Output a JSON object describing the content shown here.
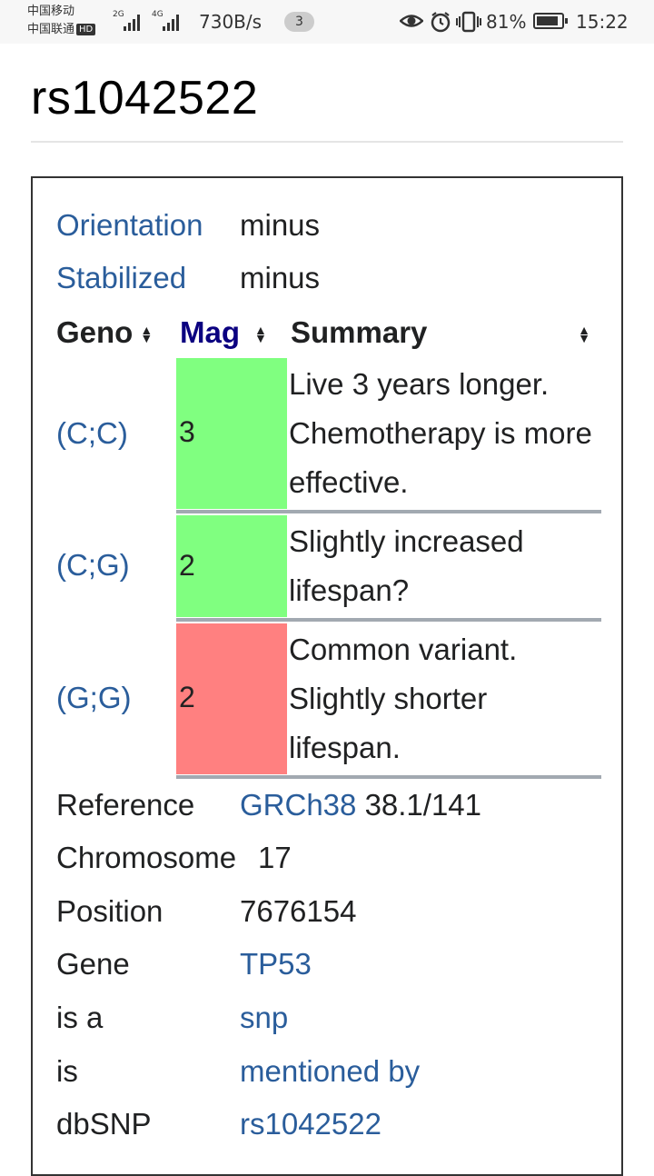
{
  "status_bar": {
    "carrier1": "中国移动",
    "carrier2": "中国联通",
    "hd_badge": "HD",
    "signal1_label": "2G",
    "signal2_label": "4G",
    "net_speed": "730B/s",
    "notification_count": "3",
    "battery_percent": "81%",
    "time": "15:22",
    "icons": [
      "eye-icon",
      "alarm-icon",
      "vibrate-icon",
      "battery-icon"
    ]
  },
  "page": {
    "title": "rs1042522"
  },
  "infobox": {
    "orientation_label": "Orientation",
    "orientation_value": "minus",
    "stabilized_label": "Stabilized",
    "stabilized_value": "minus",
    "table_headers": [
      "Geno",
      "Mag",
      "Summary"
    ],
    "genotypes": [
      {
        "geno": "(C;C)",
        "mag": "3",
        "mag_color": "#80ff80",
        "summary": "Live 3 years longer. Chemotherapy is more effective."
      },
      {
        "geno": "(C;G)",
        "mag": "2",
        "mag_color": "#80ff80",
        "summary": "Slightly increased lifespan?"
      },
      {
        "geno": "(G;G)",
        "mag": "2",
        "mag_color": "#ff8080",
        "summary": "Common variant. Slightly shorter lifespan."
      }
    ],
    "reference_label": "Reference",
    "reference_link": "GRCh38",
    "reference_version": "38.1/141",
    "chromosome_label": "Chromosome",
    "chromosome_value": "17",
    "position_label": "Position",
    "position_value": "7676154",
    "gene_label": "Gene",
    "gene_value": "TP53",
    "isa_label": "is a",
    "isa_value": "snp",
    "is_label": "is",
    "is_value": "mentioned by",
    "dbsnp_label": "dbSNP",
    "dbsnp_value": "rs1042522"
  },
  "colors": {
    "link": "#2a5d9b",
    "mag_header": "#0b0080",
    "mag_good": "#80ff80",
    "mag_bad": "#ff8080"
  }
}
